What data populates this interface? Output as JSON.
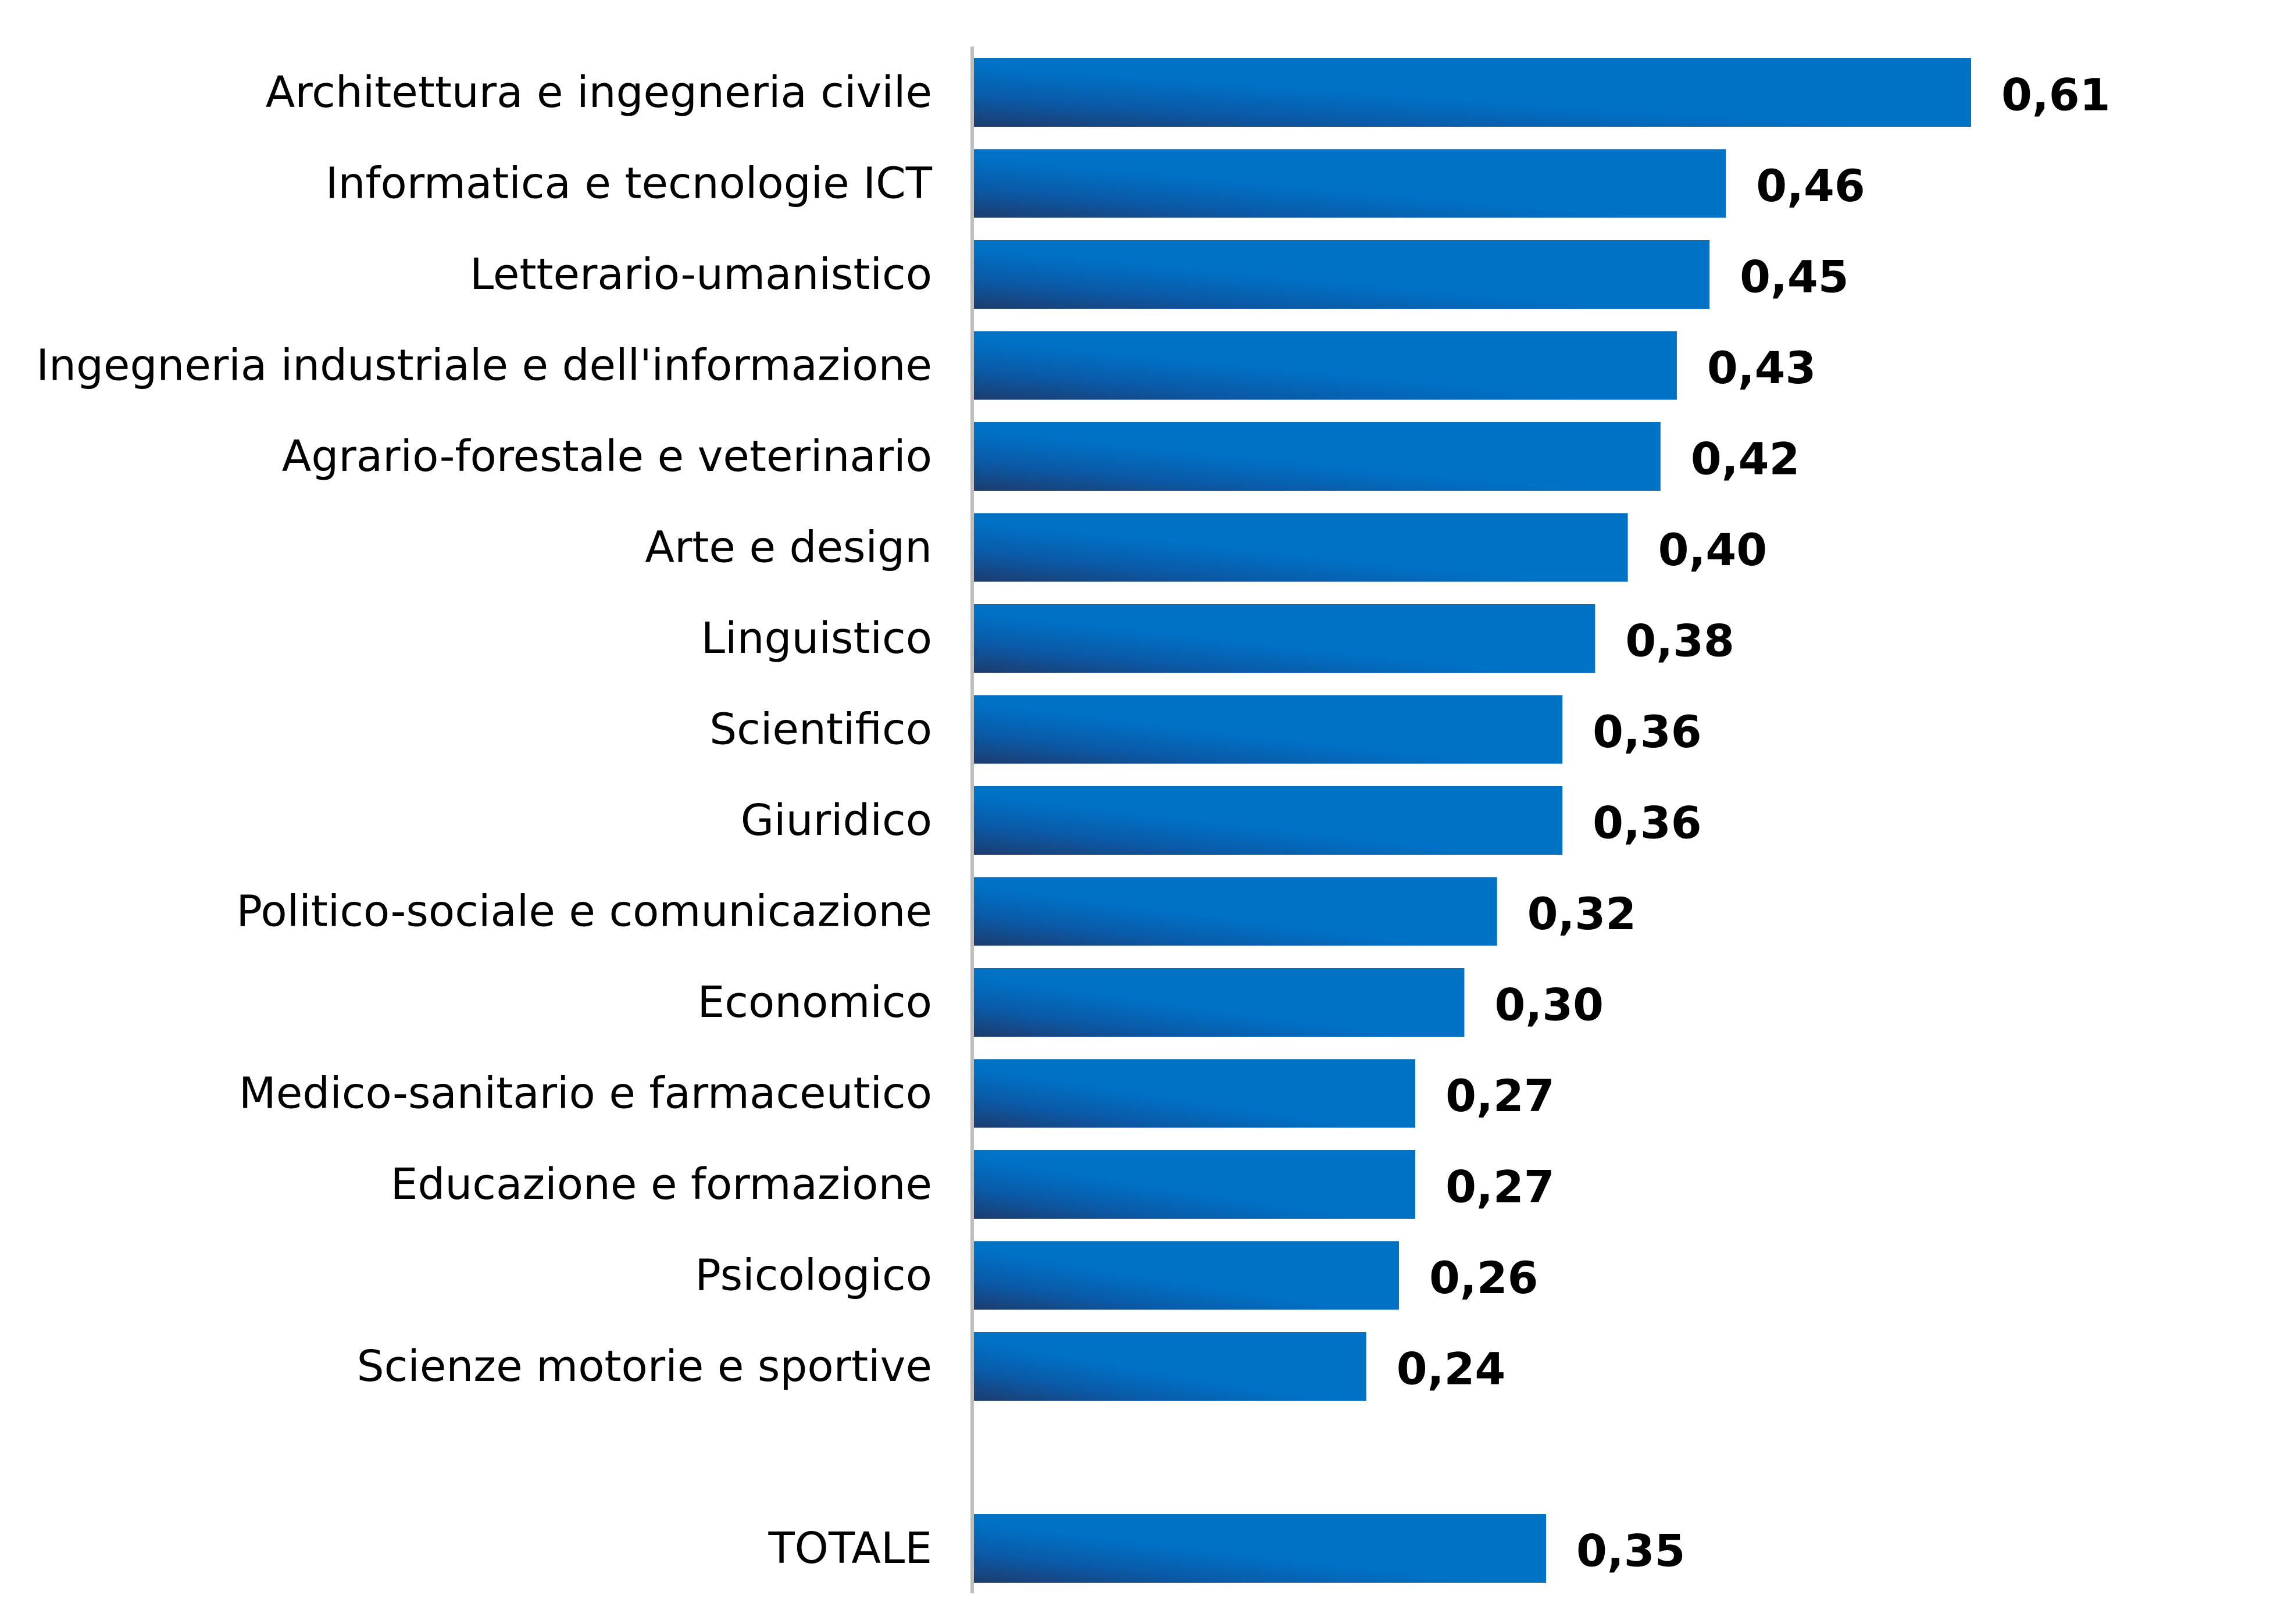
{
  "chart_data": {
    "type": "bar",
    "orientation": "horizontal",
    "title": "",
    "xlabel": "",
    "ylabel": "",
    "xlim": [
      0,
      0.61
    ],
    "grid": false,
    "legend": "none",
    "bar_color": "#0072c6",
    "bar_color_dark": "#1d3c6e",
    "axis_color": "#bfbfbf",
    "categories": [
      "Architettura e ingegneria civile",
      "Informatica e tecnologie ICT",
      "Letterario-umanistico",
      "Ingegneria industriale e dell'informazione",
      "Agrario-forestale e veterinario",
      "Arte e design",
      "Linguistico",
      "Scientifico",
      "Giuridico",
      "Politico-sociale e comunicazione",
      "Economico",
      "Medico-sanitario e farmaceutico",
      "Educazione e formazione",
      "Psicologico",
      "Scienze motorie e sportive",
      "TOTALE"
    ],
    "values": [
      0.61,
      0.46,
      0.45,
      0.43,
      0.42,
      0.4,
      0.38,
      0.36,
      0.36,
      0.32,
      0.3,
      0.27,
      0.27,
      0.26,
      0.24,
      0.35
    ],
    "value_labels": [
      "0,61",
      "0,46",
      "0,45",
      "0,43",
      "0,42",
      "0,40",
      "0,38",
      "0,36",
      "0,36",
      "0,32",
      "0,30",
      "0,27",
      "0,27",
      "0,26",
      "0,24",
      "0,35"
    ]
  }
}
